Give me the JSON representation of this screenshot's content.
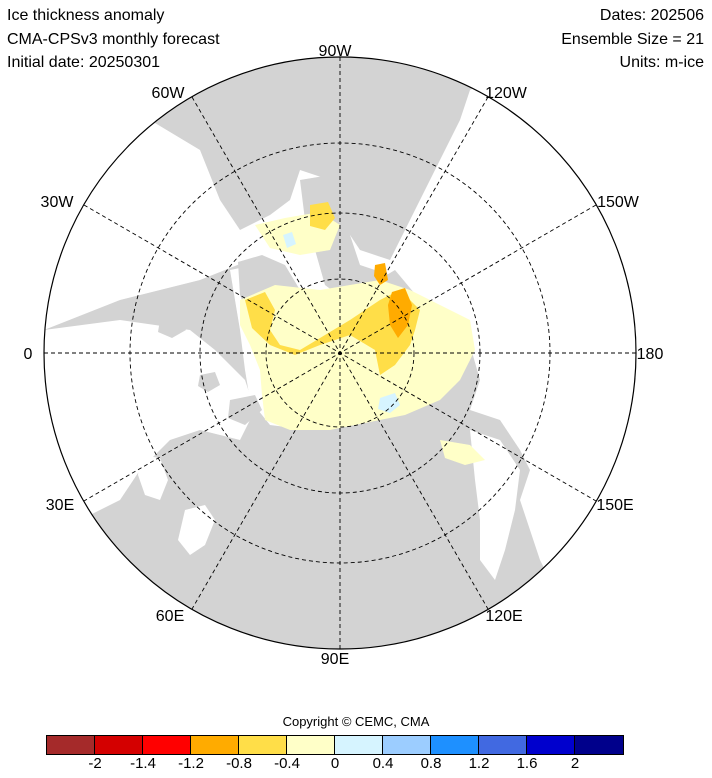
{
  "header": {
    "title": "Ice thickness anomaly",
    "model": "CMA-CPSv3 monthly forecast",
    "initial_date": "Initial date: 20250301",
    "dates": "Dates: 202506",
    "ensemble": "Ensemble Size = 21",
    "units": "Units: m-ice"
  },
  "map": {
    "longitude_labels": {
      "lon_90w": "90W",
      "lon_120w": "120W",
      "lon_150w": "150W",
      "lon_180": "180",
      "lon_150e": "150E",
      "lon_120e": "120E",
      "lon_90e": "90E",
      "lon_60e": "60E",
      "lon_30e": "30E",
      "lon_0": "0",
      "lon_30w": "30W",
      "lon_60w": "60W"
    },
    "colors": {
      "land": "#d3d3d3",
      "ocean": "#ffffff",
      "anom_pos_small": "#d6f4ff",
      "anom_neg_small": "#ffffc8",
      "anom_neg_mid": "#ffde48",
      "anom_neg_large": "#ffab00"
    }
  },
  "copyright": "Copyright © CEMC, CMA",
  "colorbar": {
    "colors": [
      "#a52a2a",
      "#d40000",
      "#ff0000",
      "#ffab00",
      "#ffde48",
      "#ffffc8",
      "#d6f4ff",
      "#9ccdff",
      "#1e90ff",
      "#4169e1",
      "#0000cd",
      "#00008b"
    ],
    "ticks": [
      "-2",
      "-1.4",
      "-1.2",
      "-0.8",
      "-0.4",
      "0",
      "0.4",
      "0.8",
      "1.2",
      "1.6",
      "2"
    ]
  }
}
